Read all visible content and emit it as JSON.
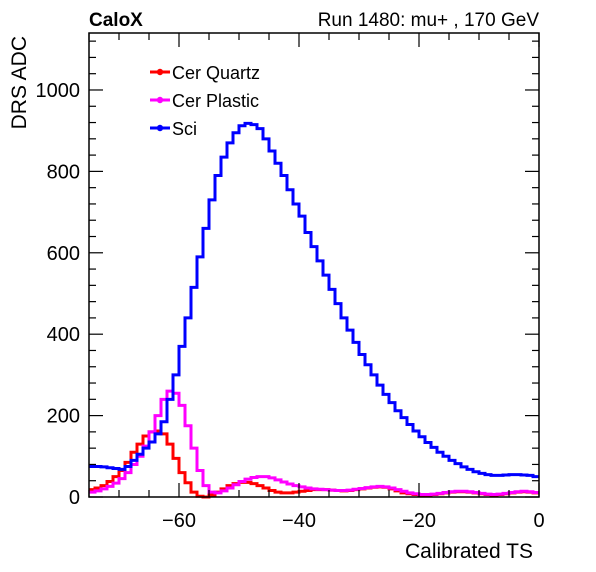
{
  "chart_data": {
    "type": "line",
    "title_left": "CaloX",
    "title_right": "Run 1480: mu+ , 170 GeV",
    "xlabel": "Calibrated TS",
    "ylabel": "DRS ADC",
    "xlim": [
      -75,
      0
    ],
    "ylim": [
      0,
      1140
    ],
    "x_ticks": [
      -60,
      -40,
      -20,
      0
    ],
    "x_tick_labels": [
      "−60",
      "−40",
      "−20",
      "0"
    ],
    "y_ticks": [
      0,
      200,
      400,
      600,
      800,
      1000
    ],
    "y_tick_labels": [
      "0",
      "200",
      "400",
      "600",
      "800",
      "1000"
    ],
    "grid": false,
    "legend_position": "top-left",
    "series": [
      {
        "name": "Cer Quartz",
        "color": "#ff0000",
        "x": [
          -75,
          -74,
          -73,
          -72,
          -71,
          -70,
          -69,
          -68,
          -67,
          -66,
          -65,
          -64,
          -63,
          -62,
          -61,
          -60,
          -59,
          -58,
          -57,
          -56,
          -55,
          -54,
          -53,
          -52,
          -51,
          -50,
          -49,
          -48,
          -47,
          -46,
          -45,
          -44,
          -43,
          -42,
          -41,
          -40,
          -39,
          -38,
          -37,
          -36,
          -35,
          -34,
          -33,
          -32,
          -31,
          -30,
          -29,
          -28,
          -27,
          -26,
          -25,
          -24,
          -23,
          -22,
          -21,
          -20,
          -19,
          -18,
          -17,
          -16,
          -15,
          -14,
          -13,
          -12,
          -11,
          -10,
          -9,
          -8,
          -7,
          -6,
          -5,
          -4,
          -3,
          -2,
          -1
        ],
        "y": [
          18,
          22,
          28,
          38,
          50,
          65,
          85,
          110,
          130,
          150,
          160,
          162,
          155,
          130,
          95,
          60,
          35,
          12,
          2,
          0,
          5,
          12,
          20,
          28,
          33,
          36,
          36,
          33,
          28,
          22,
          16,
          12,
          10,
          10,
          12,
          14,
          16,
          18,
          18,
          18,
          17,
          16,
          15,
          16,
          18,
          20,
          22,
          24,
          25,
          24,
          20,
          15,
          10,
          8,
          6,
          5,
          5,
          6,
          8,
          10,
          12,
          13,
          13,
          12,
          10,
          8,
          6,
          5,
          6,
          8,
          10,
          12,
          13,
          12,
          10
        ]
      },
      {
        "name": "Cer Plastic",
        "color": "#ff00ff",
        "x": [
          -75,
          -74,
          -73,
          -72,
          -71,
          -70,
          -69,
          -68,
          -67,
          -66,
          -65,
          -64,
          -63,
          -62,
          -61,
          -60,
          -59,
          -58,
          -57,
          -56,
          -55,
          -54,
          -53,
          -52,
          -51,
          -50,
          -49,
          -48,
          -47,
          -46,
          -45,
          -44,
          -43,
          -42,
          -41,
          -40,
          -39,
          -38,
          -37,
          -36,
          -35,
          -34,
          -33,
          -32,
          -31,
          -30,
          -29,
          -28,
          -27,
          -26,
          -25,
          -24,
          -23,
          -22,
          -21,
          -20,
          -19,
          -18,
          -17,
          -16,
          -15,
          -14,
          -13,
          -12,
          -11,
          -10,
          -9,
          -8,
          -7,
          -6,
          -5,
          -4,
          -3,
          -2,
          -1
        ],
        "y": [
          12,
          15,
          20,
          26,
          34,
          45,
          60,
          80,
          100,
          125,
          160,
          200,
          240,
          260,
          255,
          225,
          175,
          120,
          65,
          28,
          12,
          10,
          15,
          22,
          30,
          38,
          44,
          48,
          50,
          50,
          47,
          42,
          37,
          32,
          28,
          25,
          22,
          20,
          19,
          18,
          17,
          16,
          16,
          17,
          19,
          21,
          23,
          25,
          26,
          25,
          22,
          18,
          14,
          10,
          8,
          6,
          6,
          7,
          9,
          11,
          13,
          14,
          14,
          13,
          11,
          9,
          7,
          6,
          7,
          9,
          11,
          13,
          14,
          13,
          11
        ]
      },
      {
        "name": "Sci",
        "color": "#0000ff",
        "x": [
          -75,
          -74,
          -73,
          -72,
          -71,
          -70,
          -69,
          -68,
          -67,
          -66,
          -65,
          -64,
          -63,
          -62,
          -61,
          -60,
          -59,
          -58,
          -57,
          -56,
          -55,
          -54,
          -53,
          -52,
          -51,
          -50,
          -49,
          -48,
          -47,
          -46,
          -45,
          -44,
          -43,
          -42,
          -41,
          -40,
          -39,
          -38,
          -37,
          -36,
          -35,
          -34,
          -33,
          -32,
          -31,
          -30,
          -29,
          -28,
          -27,
          -26,
          -25,
          -24,
          -23,
          -22,
          -21,
          -20,
          -19,
          -18,
          -17,
          -16,
          -15,
          -14,
          -13,
          -12,
          -11,
          -10,
          -9,
          -8,
          -7,
          -6,
          -5,
          -4,
          -3,
          -2,
          -1
        ],
        "y": [
          75,
          75,
          74,
          72,
          70,
          68,
          75,
          90,
          105,
          120,
          135,
          155,
          185,
          240,
          300,
          370,
          440,
          515,
          590,
          660,
          730,
          790,
          835,
          870,
          895,
          912,
          918,
          915,
          905,
          880,
          850,
          820,
          790,
          755,
          720,
          690,
          650,
          615,
          580,
          545,
          510,
          475,
          440,
          410,
          380,
          350,
          325,
          300,
          275,
          252,
          232,
          212,
          195,
          178,
          162,
          148,
          134,
          122,
          110,
          100,
          90,
          82,
          74,
          68,
          62,
          58,
          55,
          53,
          53,
          54,
          55,
          55,
          54,
          53,
          50
        ]
      }
    ]
  }
}
